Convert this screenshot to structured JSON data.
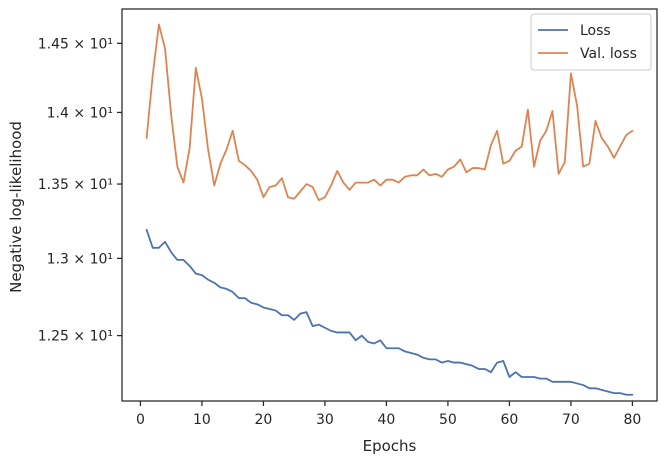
{
  "chart_data": {
    "type": "line",
    "xlabel": "Epochs",
    "ylabel": "Negative log-likelihood",
    "xlim": [
      -3,
      84
    ],
    "ylim": [
      12.0917,
      14.755
    ],
    "y_scale": "log",
    "grid": false,
    "legend_position": "top-right",
    "x_ticks": [
      0,
      10,
      20,
      30,
      40,
      50,
      60,
      70,
      80
    ],
    "y_ticks": [
      {
        "value": 12.5,
        "label": "1.25 × 10¹"
      },
      {
        "value": 13.0,
        "label": "1.3 × 10¹"
      },
      {
        "value": 13.5,
        "label": "1.35 × 10¹"
      },
      {
        "value": 14.0,
        "label": "1.4 × 10¹"
      },
      {
        "value": 14.5,
        "label": "1.45 × 10¹"
      }
    ],
    "x": [
      1,
      2,
      3,
      4,
      5,
      6,
      7,
      8,
      9,
      10,
      11,
      12,
      13,
      14,
      15,
      16,
      17,
      18,
      19,
      20,
      21,
      22,
      23,
      24,
      25,
      26,
      27,
      28,
      29,
      30,
      31,
      32,
      33,
      34,
      35,
      36,
      37,
      38,
      39,
      40,
      41,
      42,
      43,
      44,
      45,
      46,
      47,
      48,
      49,
      50,
      51,
      52,
      53,
      54,
      55,
      56,
      57,
      58,
      59,
      60,
      61,
      62,
      63,
      64,
      65,
      66,
      67,
      68,
      69,
      70,
      71,
      72,
      73,
      74,
      75,
      76,
      77,
      78,
      79,
      80
    ],
    "series": [
      {
        "name": "Loss",
        "color": "#4c72b0",
        "values": [
          13.19,
          13.07,
          13.07,
          13.11,
          13.04,
          12.99,
          12.99,
          12.95,
          12.9,
          12.89,
          12.86,
          12.84,
          12.81,
          12.8,
          12.78,
          12.74,
          12.74,
          12.71,
          12.7,
          12.68,
          12.67,
          12.66,
          12.63,
          12.63,
          12.6,
          12.64,
          12.65,
          12.56,
          12.57,
          12.55,
          12.53,
          12.52,
          12.52,
          12.52,
          12.47,
          12.5,
          12.46,
          12.45,
          12.47,
          12.42,
          12.42,
          12.42,
          12.4,
          12.39,
          12.38,
          12.36,
          12.35,
          12.35,
          12.33,
          12.34,
          12.33,
          12.33,
          12.32,
          12.31,
          12.29,
          12.29,
          12.27,
          12.33,
          12.34,
          12.24,
          12.27,
          12.24,
          12.24,
          12.24,
          12.23,
          12.23,
          12.21,
          12.21,
          12.21,
          12.21,
          12.2,
          12.19,
          12.17,
          12.17,
          12.16,
          12.15,
          12.14,
          12.14,
          12.13,
          12.13
        ]
      },
      {
        "name": "Val. loss",
        "color": "#dd8452",
        "values": [
          13.82,
          14.27,
          14.64,
          14.46,
          13.98,
          13.62,
          13.51,
          13.75,
          14.32,
          14.1,
          13.74,
          13.49,
          13.64,
          13.74,
          13.87,
          13.66,
          13.63,
          13.59,
          13.53,
          13.41,
          13.48,
          13.49,
          13.54,
          13.41,
          13.4,
          13.45,
          13.5,
          13.48,
          13.39,
          13.41,
          13.49,
          13.59,
          13.51,
          13.46,
          13.51,
          13.51,
          13.51,
          13.53,
          13.49,
          13.53,
          13.53,
          13.51,
          13.55,
          13.56,
          13.56,
          13.6,
          13.56,
          13.57,
          13.55,
          13.6,
          13.62,
          13.67,
          13.58,
          13.61,
          13.61,
          13.6,
          13.77,
          13.87,
          13.64,
          13.66,
          13.73,
          13.76,
          14.02,
          13.62,
          13.8,
          13.87,
          14.01,
          13.57,
          13.65,
          14.28,
          14.05,
          13.62,
          13.64,
          13.94,
          13.82,
          13.76,
          13.68,
          13.76,
          13.84,
          13.87
        ]
      }
    ]
  }
}
